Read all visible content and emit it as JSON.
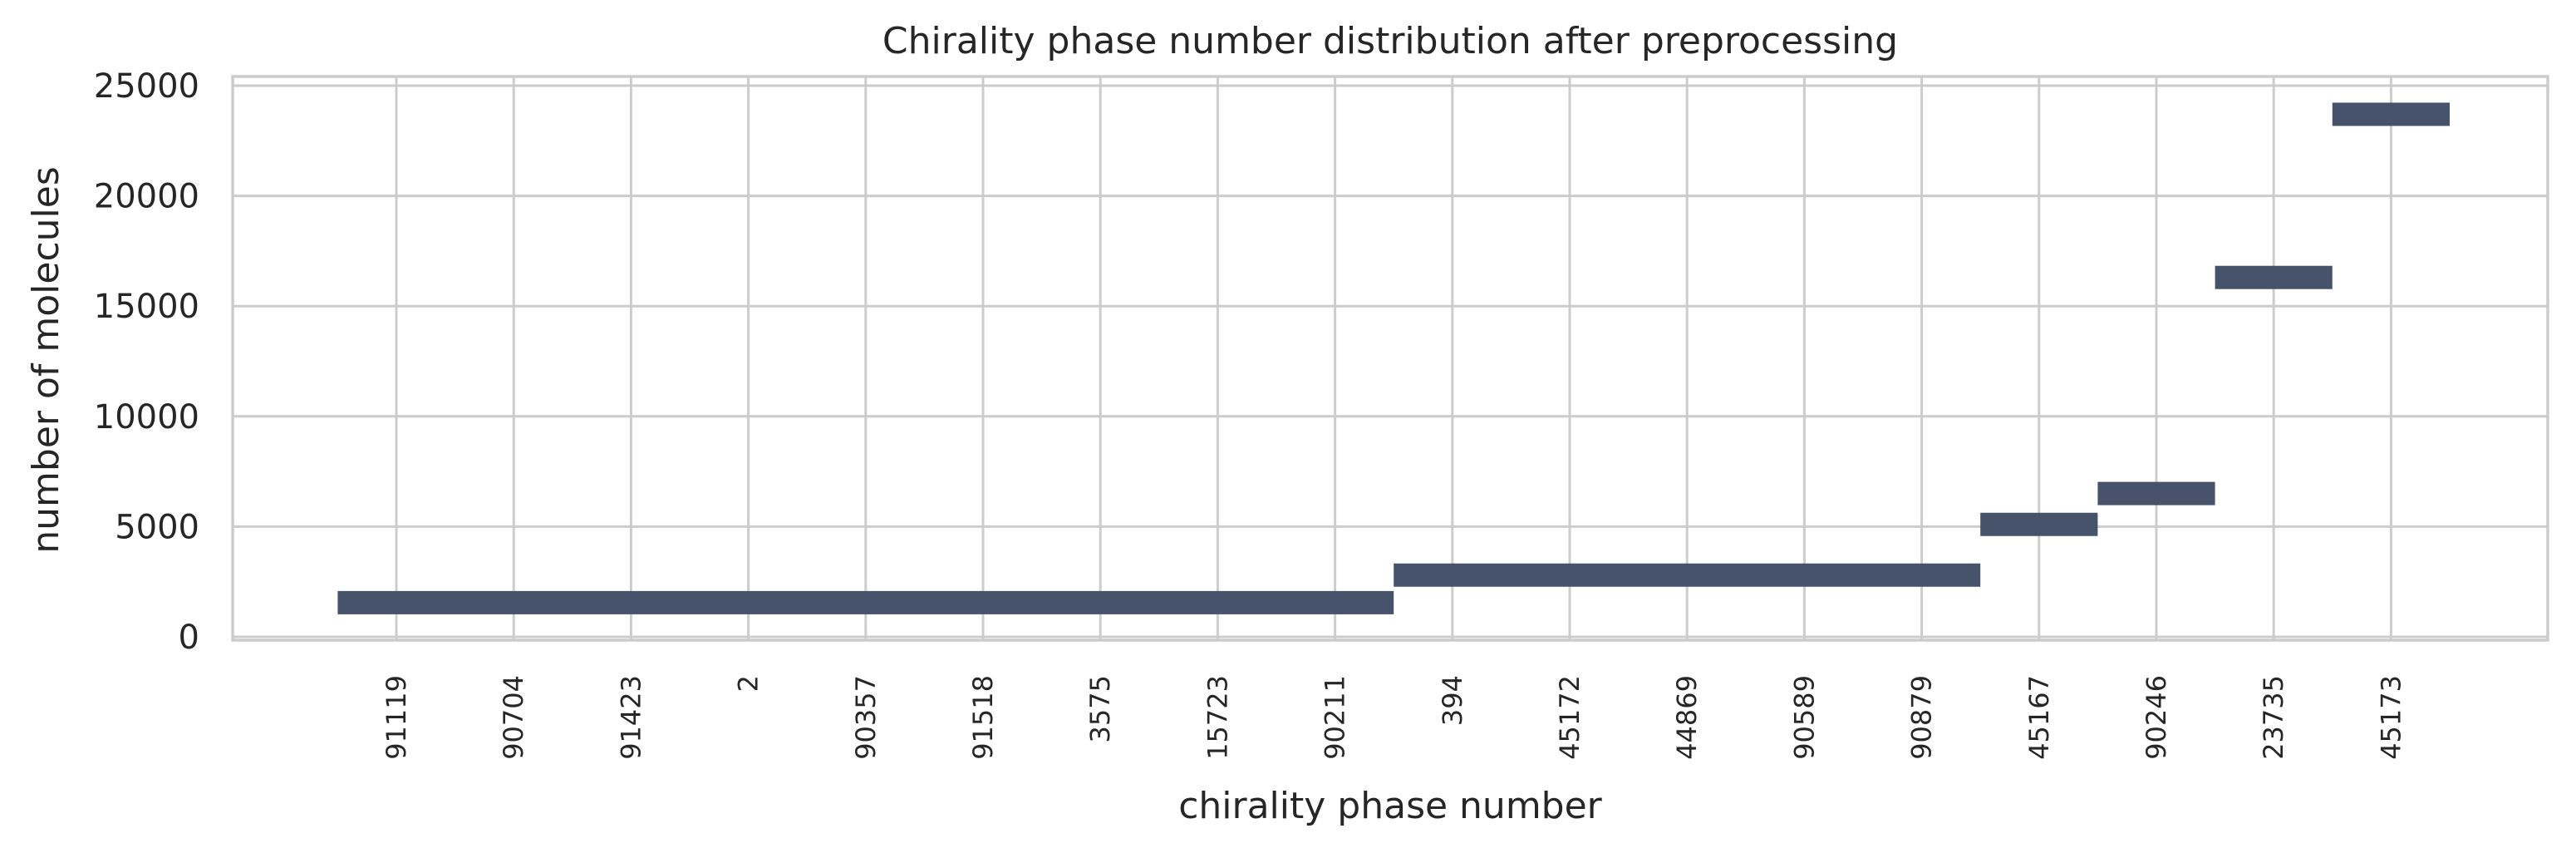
{
  "chart_data": {
    "type": "bar",
    "title": "Chirality phase number distribution after preprocessing",
    "xlabel": "chirality phase number",
    "ylabel": "number of molecules",
    "ylim": [
      0,
      25400
    ],
    "yticks": [
      "0",
      "5000",
      "10000",
      "15000",
      "20000",
      "25000"
    ],
    "grid": true,
    "categories": [
      "91119",
      "90704",
      "91423",
      "2",
      "90357",
      "91518",
      "3575",
      "15723",
      "90211",
      "394",
      "45172",
      "44869",
      "90589",
      "90879",
      "45167",
      "90246",
      "23735",
      "45173"
    ],
    "bars": [
      {
        "start": -0.5,
        "end": 8.5,
        "value": 1550
      },
      {
        "start": 8.5,
        "end": 13.5,
        "value": 2800
      },
      {
        "start": 13.5,
        "end": 14.5,
        "value": 5100
      },
      {
        "start": 14.5,
        "end": 15.5,
        "value": 6500
      },
      {
        "start": 15.5,
        "end": 16.5,
        "value": 16300
      },
      {
        "start": 16.5,
        "end": 17.5,
        "value": 23700
      }
    ],
    "bar_color": "#47536b",
    "grid_color": "#cccccc"
  }
}
